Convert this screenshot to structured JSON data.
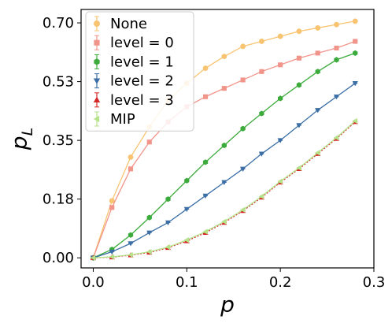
{
  "chart_data": {
    "type": "line",
    "xlabel": "p",
    "ylabel": "p",
    "ylabel_sub": "L",
    "xlim": [
      -0.013,
      0.3
    ],
    "ylim": [
      -0.03,
      0.74
    ],
    "x_ticks": [
      0.0,
      0.1,
      0.2,
      0.3
    ],
    "x_tick_labels": [
      "0.0",
      "0.1",
      "0.2",
      "0.3"
    ],
    "y_ticks": [
      0.0,
      0.175,
      0.35,
      0.525,
      0.7
    ],
    "y_tick_labels": [
      "0.00",
      "0.18",
      "0.35",
      "0.53",
      "0.70"
    ],
    "legend_position": "top-left",
    "x": [
      0.0,
      0.02,
      0.04,
      0.06,
      0.08,
      0.1,
      0.12,
      0.14,
      0.16,
      0.18,
      0.2,
      0.22,
      0.24,
      0.26,
      0.28
    ],
    "series": [
      {
        "name": "None",
        "color": "#f8c471",
        "marker": "circle",
        "values": [
          0.0,
          0.17,
          0.3,
          0.39,
          0.47,
          0.52,
          0.565,
          0.6,
          0.63,
          0.645,
          0.66,
          0.675,
          0.685,
          0.695,
          0.705
        ]
      },
      {
        "name": "level = 0",
        "color": "#f1948a",
        "marker": "square",
        "values": [
          0.0,
          0.15,
          0.265,
          0.345,
          0.405,
          0.45,
          0.48,
          0.505,
          0.53,
          0.555,
          0.575,
          0.595,
          0.61,
          0.625,
          0.645
        ]
      },
      {
        "name": "level = 1",
        "color": "#3cab3c",
        "marker": "hexagon",
        "values": [
          0.0,
          0.025,
          0.068,
          0.12,
          0.175,
          0.23,
          0.285,
          0.335,
          0.385,
          0.43,
          0.475,
          0.515,
          0.555,
          0.59,
          0.61
        ]
      },
      {
        "name": "level = 2",
        "color": "#3a6ea5",
        "marker": "triangle-down",
        "values": [
          0.0,
          0.018,
          0.043,
          0.075,
          0.105,
          0.145,
          0.185,
          0.225,
          0.265,
          0.31,
          0.35,
          0.395,
          0.44,
          0.48,
          0.52
        ]
      },
      {
        "name": "level = 3",
        "color": "#d62728",
        "marker": "triangle-up",
        "values": [
          0.0,
          0.002,
          0.008,
          0.016,
          0.03,
          0.05,
          0.075,
          0.105,
          0.14,
          0.18,
          0.225,
          0.265,
          0.31,
          0.355,
          0.405
        ]
      },
      {
        "name": "MIP",
        "color": "#b5e38a",
        "marker": "triangle-left",
        "values": [
          0.0,
          0.003,
          0.009,
          0.018,
          0.032,
          0.053,
          0.078,
          0.108,
          0.143,
          0.183,
          0.228,
          0.268,
          0.313,
          0.358,
          0.408
        ]
      }
    ]
  }
}
